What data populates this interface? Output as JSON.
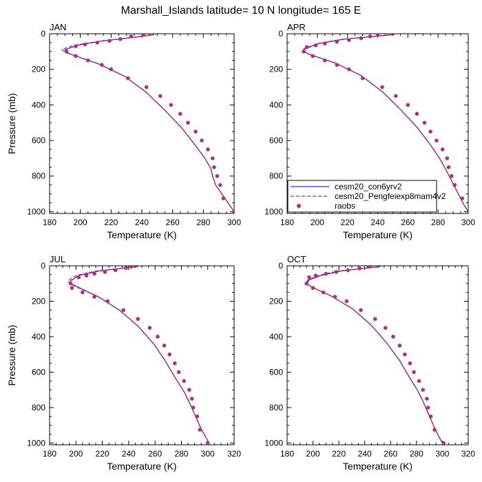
{
  "figure": {
    "title": "Marshall_Islands  latitude= 10 N longitude= 165 E"
  },
  "legend": {
    "entries": [
      {
        "name": "cesm20_con6yrv2",
        "color": "#2b2bff",
        "style": "solid"
      },
      {
        "name": "cesm20_Pengfeiexp8mam4v2",
        "color": "#e02020",
        "style": "dashed"
      },
      {
        "name": "raobs",
        "color": "#b03080",
        "style": "marker"
      }
    ]
  },
  "chart_data": [
    {
      "type": "line",
      "panel": "JAN",
      "xlabel": "Temperature (K)",
      "ylabel": "Pressure (mb)",
      "xlim": [
        180,
        300
      ],
      "ylim": [
        1010,
        0
      ],
      "xticks": [
        "180",
        "200",
        "220",
        "240",
        "260",
        "280",
        "300"
      ],
      "yticks": [
        "0",
        "200",
        "400",
        "600",
        "800",
        "1000"
      ],
      "series": [
        {
          "name": "cesm20_con6yrv2",
          "x": [
            248,
            235,
            215,
            198,
            190,
            191,
            197,
            212,
            229,
            243,
            255,
            266,
            275,
            281,
            285,
            286,
            288,
            292,
            296,
            300
          ],
          "y": [
            5,
            20,
            40,
            65,
            90,
            105,
            125,
            170,
            240,
            330,
            430,
            530,
            630,
            700,
            760,
            800,
            850,
            900,
            950,
            1000
          ]
        },
        {
          "name": "cesm20_Pengfeiexp8mam4v2",
          "x": [
            248,
            235,
            214,
            196,
            188,
            190,
            197,
            212,
            229,
            243,
            255,
            266,
            275,
            281,
            285,
            286,
            288,
            292,
            296,
            300
          ],
          "y": [
            5,
            20,
            40,
            65,
            88,
            105,
            125,
            170,
            240,
            330,
            430,
            530,
            630,
            700,
            760,
            800,
            850,
            900,
            950,
            1000
          ]
        },
        {
          "name": "raobs",
          "x": [
            241,
            233,
            226,
            219,
            211,
            203,
            197,
            191,
            197,
            205,
            214,
            220,
            231,
            243,
            252,
            259,
            265,
            270,
            275,
            279,
            283,
            286,
            287,
            289,
            291,
            293,
            300
          ],
          "y": [
            3,
            15,
            30,
            40,
            50,
            60,
            70,
            100,
            125,
            150,
            175,
            200,
            250,
            300,
            350,
            400,
            450,
            500,
            550,
            600,
            650,
            700,
            750,
            800,
            850,
            925,
            1000
          ]
        }
      ]
    },
    {
      "type": "line",
      "panel": "APR",
      "xlabel": "Temperature (K)",
      "ylabel": "",
      "xlim": [
        180,
        300
      ],
      "ylim": [
        1010,
        0
      ],
      "xticks": [
        "180",
        "200",
        "220",
        "240",
        "260",
        "280",
        "300"
      ],
      "yticks": [
        "0",
        "200",
        "400",
        "600",
        "800",
        "1000"
      ],
      "series": [
        {
          "name": "cesm20_con6yrv2",
          "x": [
            251,
            238,
            218,
            201,
            192,
            191,
            196,
            212,
            229,
            243,
            255,
            266,
            275,
            281,
            285,
            288,
            291,
            294,
            297,
            300
          ],
          "y": [
            5,
            15,
            30,
            55,
            85,
            100,
            120,
            165,
            235,
            325,
            425,
            525,
            625,
            700,
            760,
            810,
            860,
            910,
            960,
            1000
          ]
        },
        {
          "name": "cesm20_Pengfeiexp8mam4v2",
          "x": [
            250,
            237,
            217,
            200,
            191,
            190,
            196,
            212,
            229,
            243,
            255,
            266,
            275,
            281,
            285,
            288,
            291,
            294,
            297,
            300
          ],
          "y": [
            5,
            15,
            30,
            55,
            85,
            100,
            120,
            165,
            235,
            325,
            425,
            525,
            625,
            700,
            760,
            810,
            860,
            910,
            960,
            1000
          ]
        },
        {
          "name": "raobs",
          "x": [
            240,
            235,
            229,
            221,
            213,
            205,
            199,
            193,
            191,
            197,
            205,
            213,
            221,
            230,
            243,
            252,
            260,
            266,
            271,
            275,
            279,
            283,
            286,
            287,
            289,
            291,
            296
          ],
          "y": [
            5,
            15,
            25,
            35,
            45,
            55,
            65,
            75,
            100,
            125,
            150,
            175,
            200,
            250,
            300,
            350,
            400,
            450,
            500,
            550,
            600,
            650,
            700,
            750,
            800,
            850,
            925
          ]
        }
      ]
    },
    {
      "type": "line",
      "panel": "JUL",
      "xlabel": "Temperature (K)",
      "ylabel": "Pressure (mb)",
      "xlim": [
        180,
        320
      ],
      "ylim": [
        1010,
        0
      ],
      "xticks": [
        "180",
        "200",
        "220",
        "240",
        "260",
        "280",
        "300",
        "320"
      ],
      "yticks": [
        "0",
        "200",
        "400",
        "600",
        "800",
        "1000"
      ],
      "series": [
        {
          "name": "cesm20_con6yrv2",
          "x": [
            247,
            234,
            217,
            202,
            196,
            196,
            203,
            217,
            233,
            247,
            259,
            268,
            276,
            282,
            286,
            289,
            292,
            295,
            298,
            301
          ],
          "y": [
            5,
            15,
            30,
            55,
            85,
            100,
            125,
            175,
            250,
            340,
            440,
            540,
            640,
            710,
            770,
            820,
            870,
            920,
            960,
            1000
          ]
        },
        {
          "name": "cesm20_Pengfeiexp8mam4v2",
          "x": [
            246,
            233,
            215,
            200,
            194,
            195,
            202,
            217,
            233,
            247,
            259,
            268,
            276,
            282,
            286,
            289,
            292,
            295,
            298,
            301
          ],
          "y": [
            5,
            15,
            30,
            55,
            85,
            100,
            125,
            175,
            250,
            340,
            440,
            540,
            640,
            710,
            770,
            820,
            870,
            920,
            960,
            1000
          ]
        },
        {
          "name": "raobs",
          "x": [
            242,
            238,
            230,
            222,
            214,
            208,
            202,
            196,
            197,
            205,
            214,
            224,
            236,
            247,
            256,
            262,
            267,
            271,
            275,
            278,
            282,
            286,
            288,
            289,
            292,
            294,
            300
          ],
          "y": [
            5,
            12,
            25,
            35,
            45,
            55,
            65,
            100,
            125,
            150,
            175,
            200,
            250,
            300,
            350,
            400,
            450,
            500,
            550,
            600,
            650,
            700,
            750,
            800,
            850,
            925,
            1000
          ]
        }
      ]
    },
    {
      "type": "line",
      "panel": "OCT",
      "xlabel": "Temperature (K)",
      "ylabel": "",
      "xlim": [
        180,
        320
      ],
      "ylim": [
        1010,
        0
      ],
      "xticks": [
        "180",
        "200",
        "220",
        "240",
        "260",
        "280",
        "300",
        "320"
      ],
      "yticks": [
        "0",
        "200",
        "400",
        "600",
        "800",
        "1000"
      ],
      "series": [
        {
          "name": "cesm20_con6yrv2",
          "x": [
            252,
            239,
            221,
            206,
            197,
            195,
            199,
            214,
            231,
            245,
            257,
            267,
            275,
            281,
            285,
            288,
            291,
            294,
            297,
            300
          ],
          "y": [
            5,
            15,
            30,
            55,
            80,
            100,
            120,
            170,
            245,
            335,
            435,
            535,
            635,
            705,
            765,
            815,
            865,
            915,
            960,
            1000
          ]
        },
        {
          "name": "cesm20_Pengfeiexp8mam4v2",
          "x": [
            251,
            238,
            219,
            204,
            196,
            194,
            199,
            214,
            231,
            245,
            257,
            267,
            275,
            281,
            285,
            288,
            291,
            294,
            297,
            300
          ],
          "y": [
            5,
            15,
            30,
            55,
            80,
            100,
            120,
            170,
            245,
            335,
            435,
            535,
            635,
            705,
            765,
            815,
            865,
            915,
            960,
            1000
          ]
        },
        {
          "name": "raobs",
          "x": [
            243,
            236,
            227,
            218,
            210,
            202,
            197,
            195,
            200,
            208,
            217,
            226,
            237,
            248,
            256,
            262,
            267,
            271,
            275,
            278,
            282,
            285,
            288,
            289,
            291,
            294,
            301
          ],
          "y": [
            5,
            15,
            25,
            35,
            45,
            55,
            65,
            100,
            125,
            150,
            175,
            200,
            250,
            300,
            350,
            400,
            450,
            500,
            550,
            600,
            650,
            700,
            750,
            800,
            850,
            925,
            1000
          ]
        }
      ]
    }
  ]
}
